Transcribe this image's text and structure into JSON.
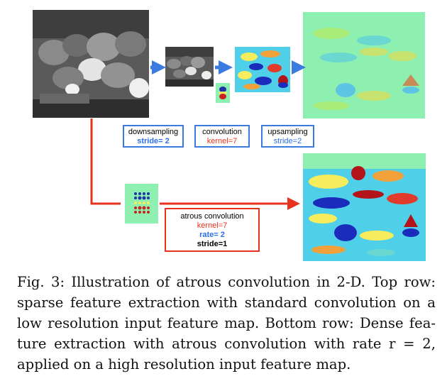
{
  "boxes": {
    "downsampling": {
      "title": "downsampling",
      "param": "stride= 2"
    },
    "convolution": {
      "title": "convolution",
      "param": "kernel=7"
    },
    "upsampling": {
      "title": "upsampling",
      "param": "stride=2"
    },
    "atrous": {
      "title": "atrous convolution",
      "kernel": "kernel=7",
      "rate": "rate= 2",
      "stride": "stride=1"
    }
  },
  "caption": {
    "lines": [
      "Fig. 3: Illustration of atrous convolution in 2-D. Top row:",
      "sparse feature extraction with standard convolution on a",
      "low resolution input feature map. Bottom row: Dense fea-",
      "ture extraction with atrous convolution with rate r = 2,",
      "applied on a high resolution input feature map."
    ]
  },
  "colors": {
    "blue_arrow": "#3b7be0",
    "red_arrow": "#e8321e",
    "map_bg": "#8ef0b0"
  }
}
